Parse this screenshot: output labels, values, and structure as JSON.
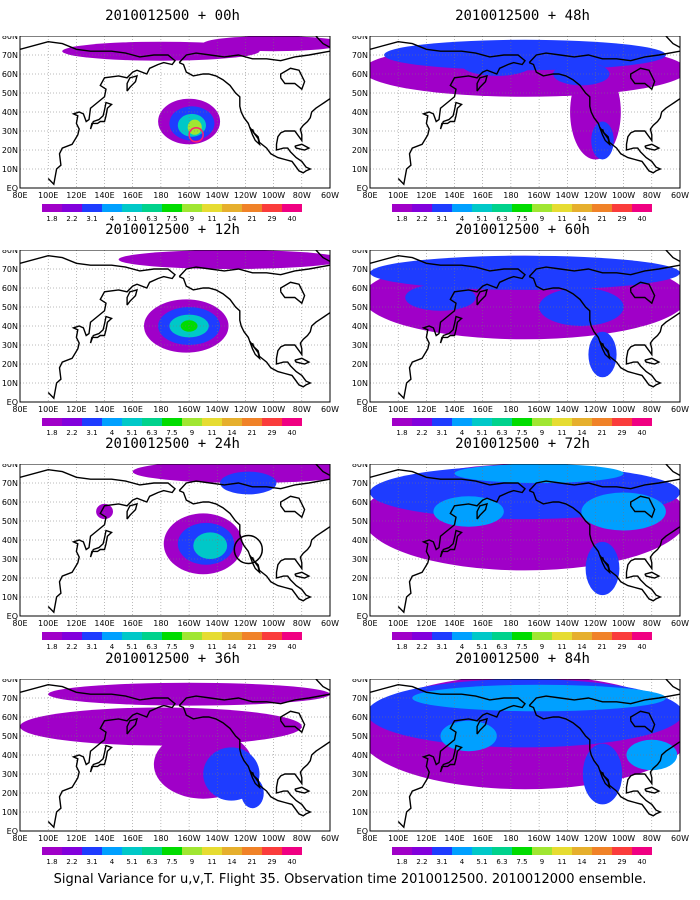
{
  "panels": [
    {
      "title": "2010012500 + 00h",
      "spread": 0.12,
      "intensity": 0.9,
      "marker": {
        "type": "red-circle",
        "lon": 205,
        "lat": 28
      }
    },
    {
      "title": "2010012500 + 12h",
      "spread": 0.18,
      "intensity": 0.85,
      "marker": null
    },
    {
      "title": "2010012500 + 24h",
      "spread": 0.3,
      "intensity": 0.75,
      "marker": {
        "type": "black-circle",
        "lon": 242,
        "lat": 35
      }
    },
    {
      "title": "2010012500 + 36h",
      "spread": 0.45,
      "intensity": 0.6,
      "marker": null
    },
    {
      "title": "2010012500 + 48h",
      "spread": 0.6,
      "intensity": 0.5,
      "marker": null
    },
    {
      "title": "2010012500 + 60h",
      "spread": 0.7,
      "intensity": 0.55,
      "marker": null
    },
    {
      "title": "2010012500 + 72h",
      "spread": 0.8,
      "intensity": 0.6,
      "marker": null
    },
    {
      "title": "2010012500 + 84h",
      "spread": 0.9,
      "intensity": 0.65,
      "marker": null
    }
  ],
  "axes": {
    "lon_labels": [
      "80E",
      "100E",
      "120E",
      "140E",
      "160E",
      "180",
      "160W",
      "140W",
      "120W",
      "100W",
      "80W",
      "60W"
    ],
    "lat_labels": [
      "EQ",
      "10N",
      "20N",
      "30N",
      "40N",
      "50N",
      "60N",
      "70N",
      "80N"
    ],
    "lon_range": [
      80,
      300
    ],
    "lat_range": [
      0,
      80
    ]
  },
  "colorbar": {
    "labels": [
      "1.8",
      "2.2",
      "3.1",
      "4",
      "5.1",
      "6.3",
      "7.5",
      "9",
      "11",
      "14",
      "21",
      "29",
      "40"
    ],
    "colors": [
      "#a000c8",
      "#8200dc",
      "#1e3cff",
      "#00a0ff",
      "#00c8c8",
      "#00d28c",
      "#00dc00",
      "#a0e632",
      "#e6dc32",
      "#e6af2d",
      "#f08228",
      "#fa3c3c",
      "#f00082"
    ]
  },
  "caption": "Signal Variance for u,v,T. Flight 35. Observation time 2010012500. 2010012000 ensemble."
}
